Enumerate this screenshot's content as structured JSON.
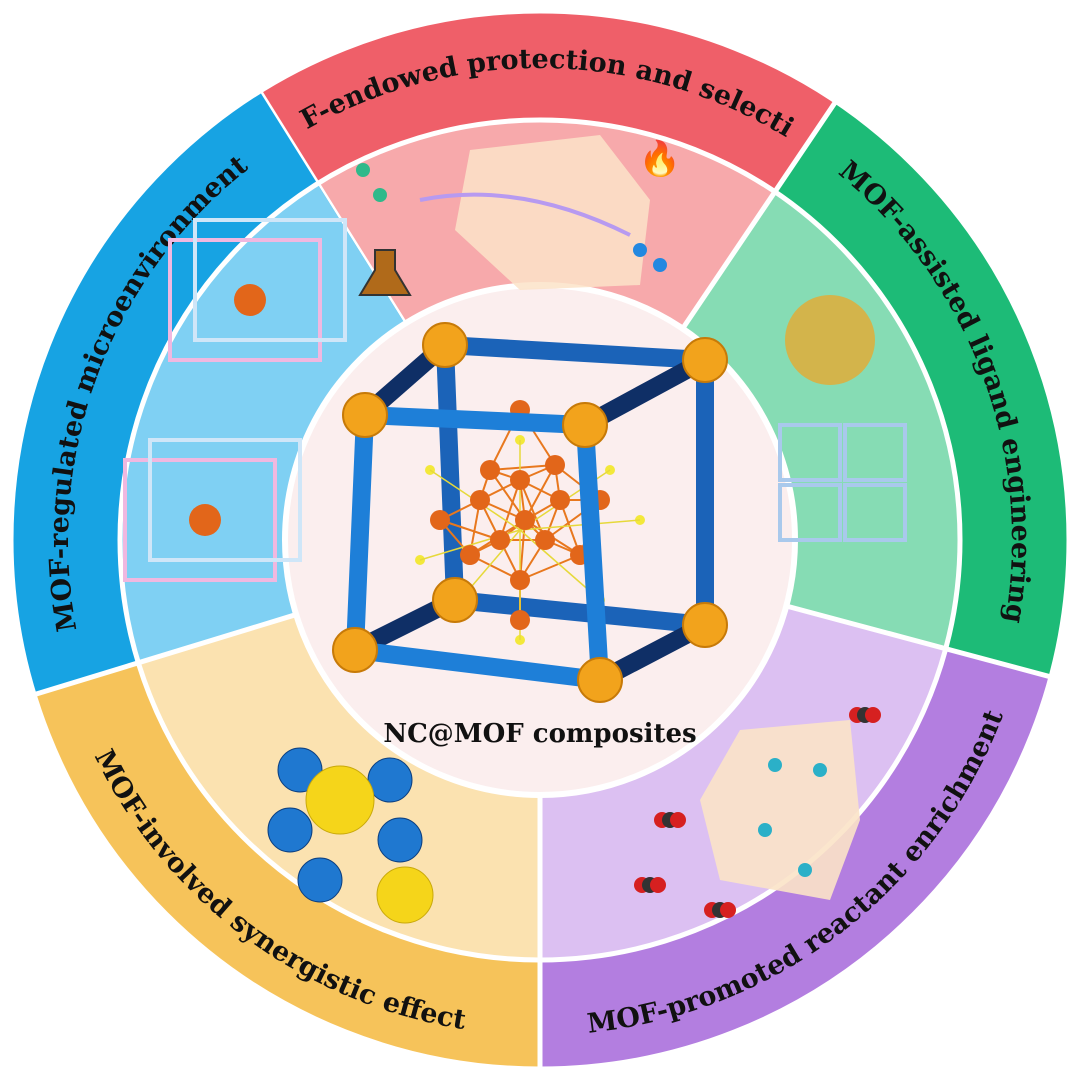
{
  "center": {
    "label": "NC@MOF composites",
    "color": "#fbeeee"
  },
  "sectors": [
    {
      "id": "protection",
      "label": "MOF-endowed protection and selectivity",
      "outer_color": "#ef5f69",
      "inner_color": "#f7a9ab",
      "icons": [
        "beaker-icon",
        "water-drop-icon",
        "lightning-icon",
        "fire-icon"
      ]
    },
    {
      "id": "ligand",
      "label": "MOF-assisted ligand engineering",
      "outer_color": "#1dbb77",
      "inner_color": "#86dcb4",
      "icons": []
    },
    {
      "id": "enrichment",
      "label": "MOF-promoted reactant enrichment",
      "outer_color": "#b37ee0",
      "inner_color": "#dcc0f2",
      "icons": [
        "co2-molecule-icon"
      ]
    },
    {
      "id": "synergistic",
      "label": "MOF-involved synergistic effect",
      "outer_color": "#f6c35a",
      "inner_color": "#fbe2b0",
      "icons": []
    },
    {
      "id": "microenvironment",
      "label": "MOF-regulated microenvironment",
      "outer_color": "#17a3e3",
      "inner_color": "#7fd0f3",
      "icons": []
    }
  ]
}
